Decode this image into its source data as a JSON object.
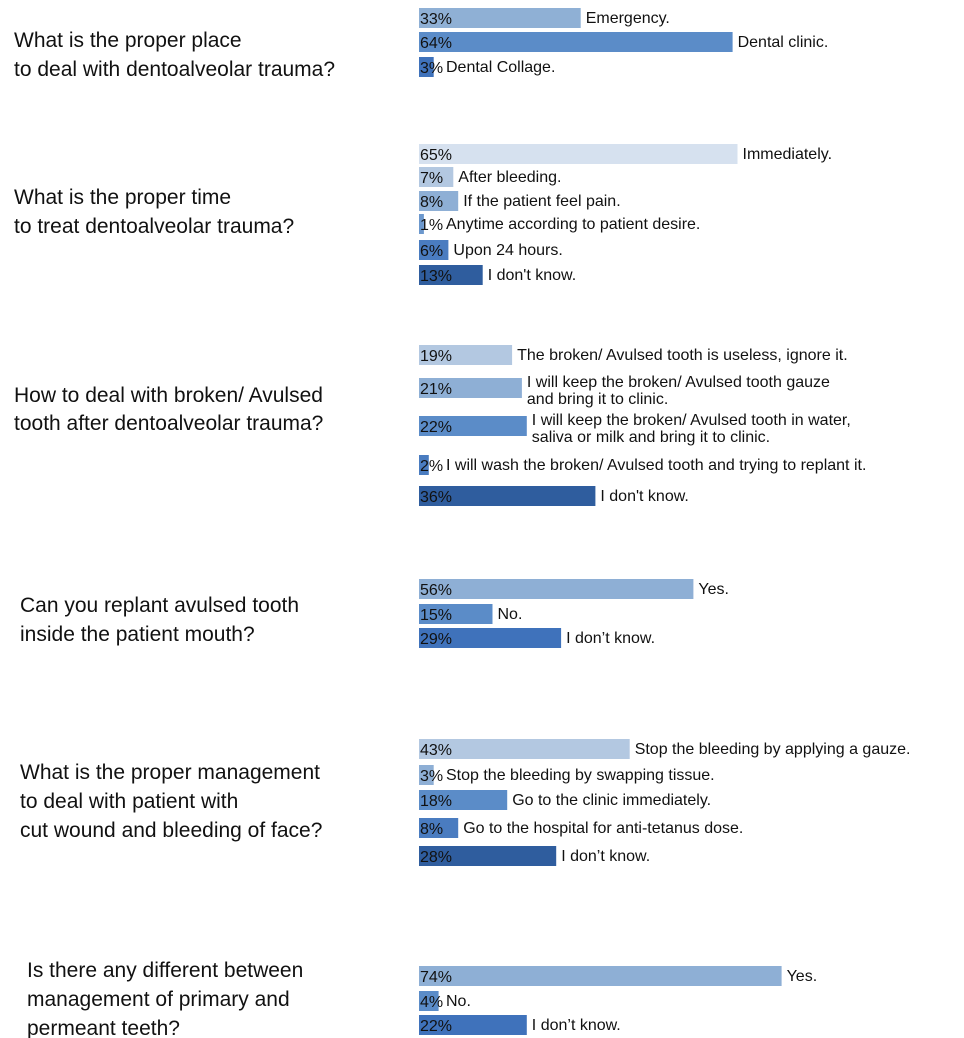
{
  "chart_data": {
    "type": "bar",
    "orientation": "horizontal",
    "unit": "%",
    "xlim": [
      0,
      100
    ],
    "groups": [
      {
        "question": [
          "What is the proper place",
          "to deal with  dentoalveolar trauma?"
        ],
        "bars": [
          {
            "value": 33,
            "pct_label": "33%",
            "label": [
              "Emergency."
            ],
            "color": "#8fb0d5"
          },
          {
            "value": 64,
            "pct_label": "64%",
            "label": [
              "Dental  clinic."
            ],
            "color": "#5b8cc8"
          },
          {
            "value": 3,
            "pct_label": "3%",
            "label": [
              "Dental Collage."
            ],
            "color": "#3f72bb"
          }
        ]
      },
      {
        "question": [
          "What is the proper time",
          "to treat  dentoalveolar trauma?"
        ],
        "bars": [
          {
            "value": 65,
            "pct_label": "65%",
            "label": [
              "Immediately."
            ],
            "color": "#d6e1ef"
          },
          {
            "value": 7,
            "pct_label": "7%",
            "label": [
              "After bleeding."
            ],
            "color": "#b3c8e1"
          },
          {
            "value": 8,
            "pct_label": "8%",
            "label": [
              "If the patient feel pain."
            ],
            "color": "#8eafd5"
          },
          {
            "value": 1,
            "pct_label": "1%",
            "label": [
              "Anytime according to patient desire."
            ],
            "color": "#6c98cd"
          },
          {
            "value": 6,
            "pct_label": "6%",
            "label": [
              "Upon 24 hours."
            ],
            "color": "#4a7cc0"
          },
          {
            "value": 13,
            "pct_label": "13%",
            "label": [
              "I don't know."
            ],
            "color": "#2f5d9e"
          }
        ]
      },
      {
        "question": [
          "How to deal with broken/ Avulsed",
          "tooth after  dentoalveolar trauma?"
        ],
        "bars": [
          {
            "value": 19,
            "pct_label": "19%",
            "label": [
              "The broken/ Avulsed tooth is useless, ignore it."
            ],
            "color": "#b3c8e1"
          },
          {
            "value": 21,
            "pct_label": "21%",
            "label": [
              "I will keep the broken/ Avulsed tooth gauze",
              "and bring it to clinic."
            ],
            "color": "#8eafd5"
          },
          {
            "value": 22,
            "pct_label": "22%",
            "label": [
              "I will keep the broken/ Avulsed tooth in water,",
              "saliva or milk and bring it to clinic."
            ],
            "color": "#5b8cc8"
          },
          {
            "value": 2,
            "pct_label": "2%",
            "label": [
              "I will wash the broken/ Avulsed tooth and trying to replant it."
            ],
            "color": "#4a7cc0"
          },
          {
            "value": 36,
            "pct_label": "36%",
            "label": [
              "I don't know."
            ],
            "color": "#2f5d9e"
          }
        ]
      },
      {
        "question": [
          "Can you replant avulsed tooth",
          "inside the patient mouth?"
        ],
        "bars": [
          {
            "value": 56,
            "pct_label": "56%",
            "label": [
              "Yes."
            ],
            "color": "#8eafd5"
          },
          {
            "value": 15,
            "pct_label": "15%",
            "label": [
              "No."
            ],
            "color": "#5b8cc8"
          },
          {
            "value": 29,
            "pct_label": "29%",
            "label": [
              "I don’t know."
            ],
            "color": "#3f72bb"
          }
        ]
      },
      {
        "question": [
          "What is the proper management",
          "to deal with patient with",
          "cut wound and bleeding of face?"
        ],
        "bars": [
          {
            "value": 43,
            "pct_label": "43%",
            "label": [
              "Stop the bleeding by applying a gauze."
            ],
            "color": "#b3c8e1"
          },
          {
            "value": 3,
            "pct_label": "3%",
            "label": [
              "Stop the bleeding by swapping tissue."
            ],
            "color": "#8eafd5"
          },
          {
            "value": 18,
            "pct_label": "18%",
            "label": [
              "Go to the clinic immediately."
            ],
            "color": "#5b8cc8"
          },
          {
            "value": 8,
            "pct_label": "8%",
            "label": [
              "Go to the hospital for anti-tetanus dose."
            ],
            "color": "#4a7cc0"
          },
          {
            "value": 28,
            "pct_label": "28%",
            "label": [
              "I don’t know."
            ],
            "color": "#2f5d9e"
          }
        ]
      },
      {
        "question": [
          "Is there any different between",
          "management of primary and",
          "permeant teeth?"
        ],
        "bars": [
          {
            "value": 74,
            "pct_label": "74%",
            "label": [
              "Yes."
            ],
            "color": "#8eafd5"
          },
          {
            "value": 4,
            "pct_label": "4%",
            "label": [
              "No."
            ],
            "color": "#5b8cc8"
          },
          {
            "value": 22,
            "pct_label": "22%",
            "label": [
              "I don’t know."
            ],
            "color": "#3f72bb"
          }
        ]
      }
    ]
  }
}
